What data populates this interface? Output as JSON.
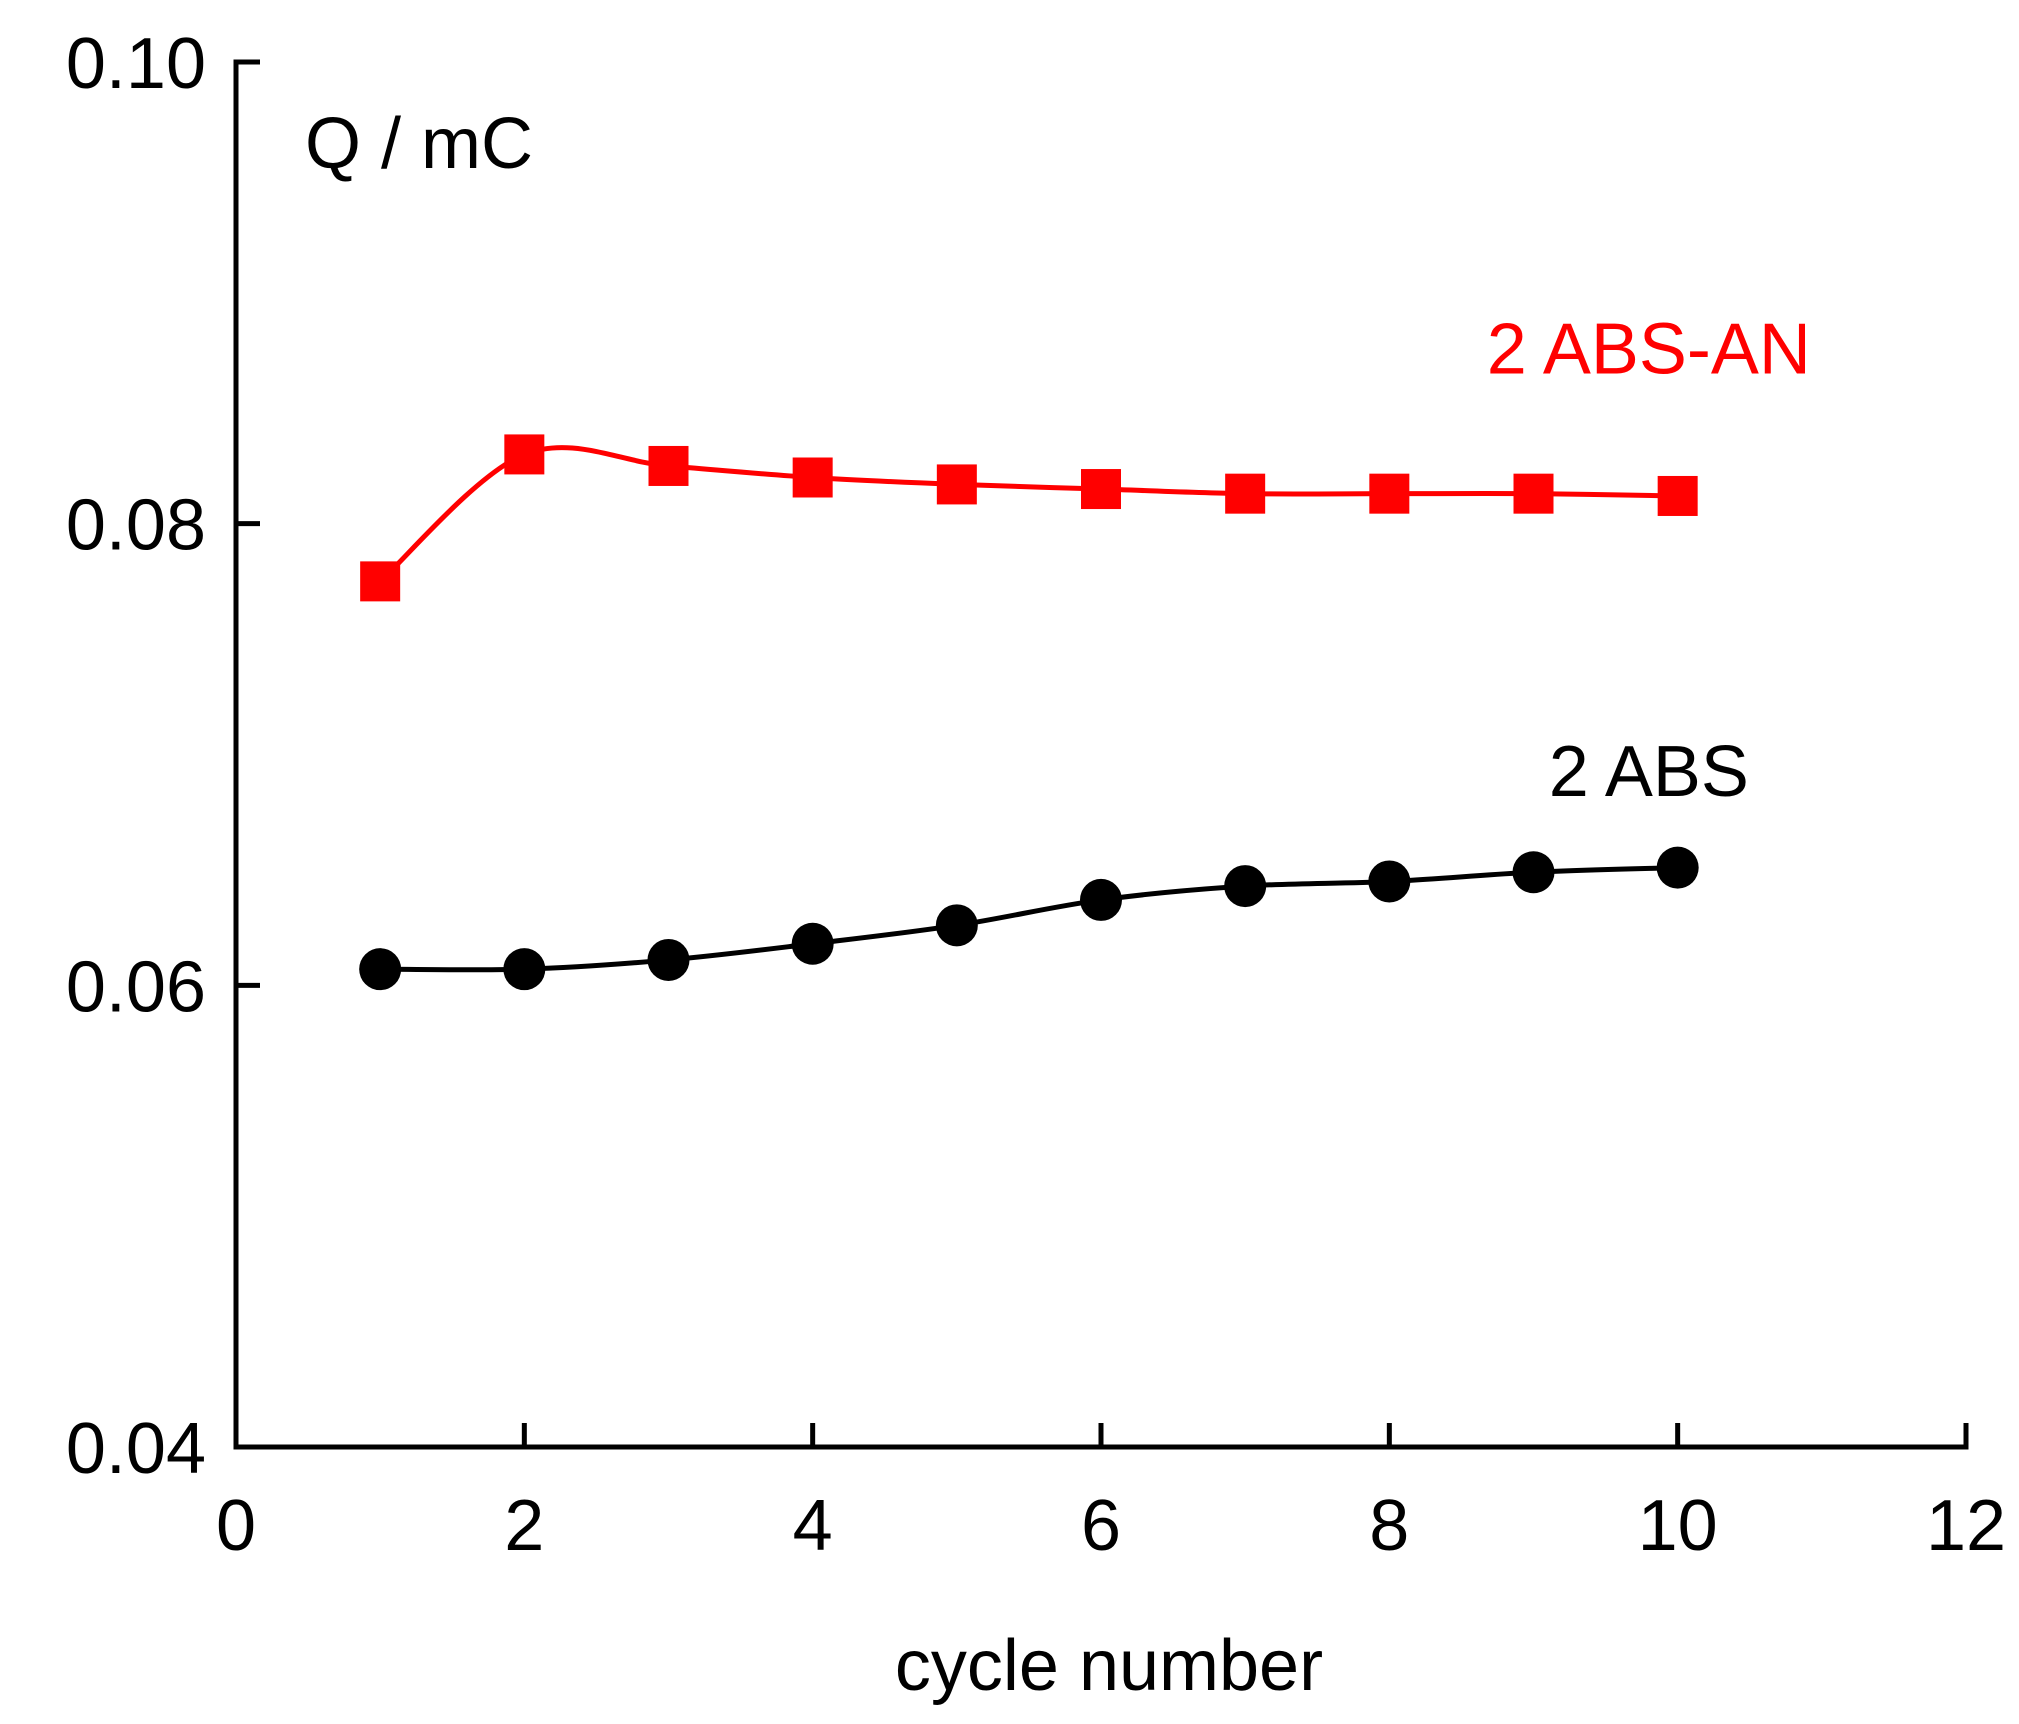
{
  "chart_data": {
    "type": "line",
    "title": "",
    "xlabel": "cycle number",
    "ylabel": "Q / mC",
    "xlim": [
      0,
      12
    ],
    "ylim": [
      0.04,
      0.1
    ],
    "xticks": [
      0,
      2,
      4,
      6,
      8,
      10,
      12
    ],
    "xtick_labels": [
      "0",
      "2",
      "4",
      "6",
      "8",
      "10",
      "12"
    ],
    "yticks": [
      0.04,
      0.06,
      0.08,
      0.1
    ],
    "ytick_labels": [
      "0.04",
      "0.06",
      "0.08",
      "0.10"
    ],
    "grid": false,
    "series": [
      {
        "name": "2 ABS-AN",
        "color": "#ff0000",
        "marker": "square",
        "label_anchor": [
          9.8,
          0.0865
        ],
        "x": [
          1,
          2,
          3,
          4,
          5,
          6,
          7,
          8,
          9,
          10
        ],
        "values": [
          0.0775,
          0.083,
          0.0825,
          0.082,
          0.0817,
          0.0815,
          0.0813,
          0.0813,
          0.0813,
          0.0812
        ]
      },
      {
        "name": "2 ABS",
        "color": "#000000",
        "marker": "circle",
        "label_anchor": [
          9.8,
          0.0682
        ],
        "x": [
          1,
          2,
          3,
          4,
          5,
          6,
          7,
          8,
          9,
          10
        ],
        "values": [
          0.0607,
          0.0607,
          0.0611,
          0.0618,
          0.0626,
          0.0637,
          0.0643,
          0.0645,
          0.0649,
          0.0651
        ]
      }
    ]
  }
}
